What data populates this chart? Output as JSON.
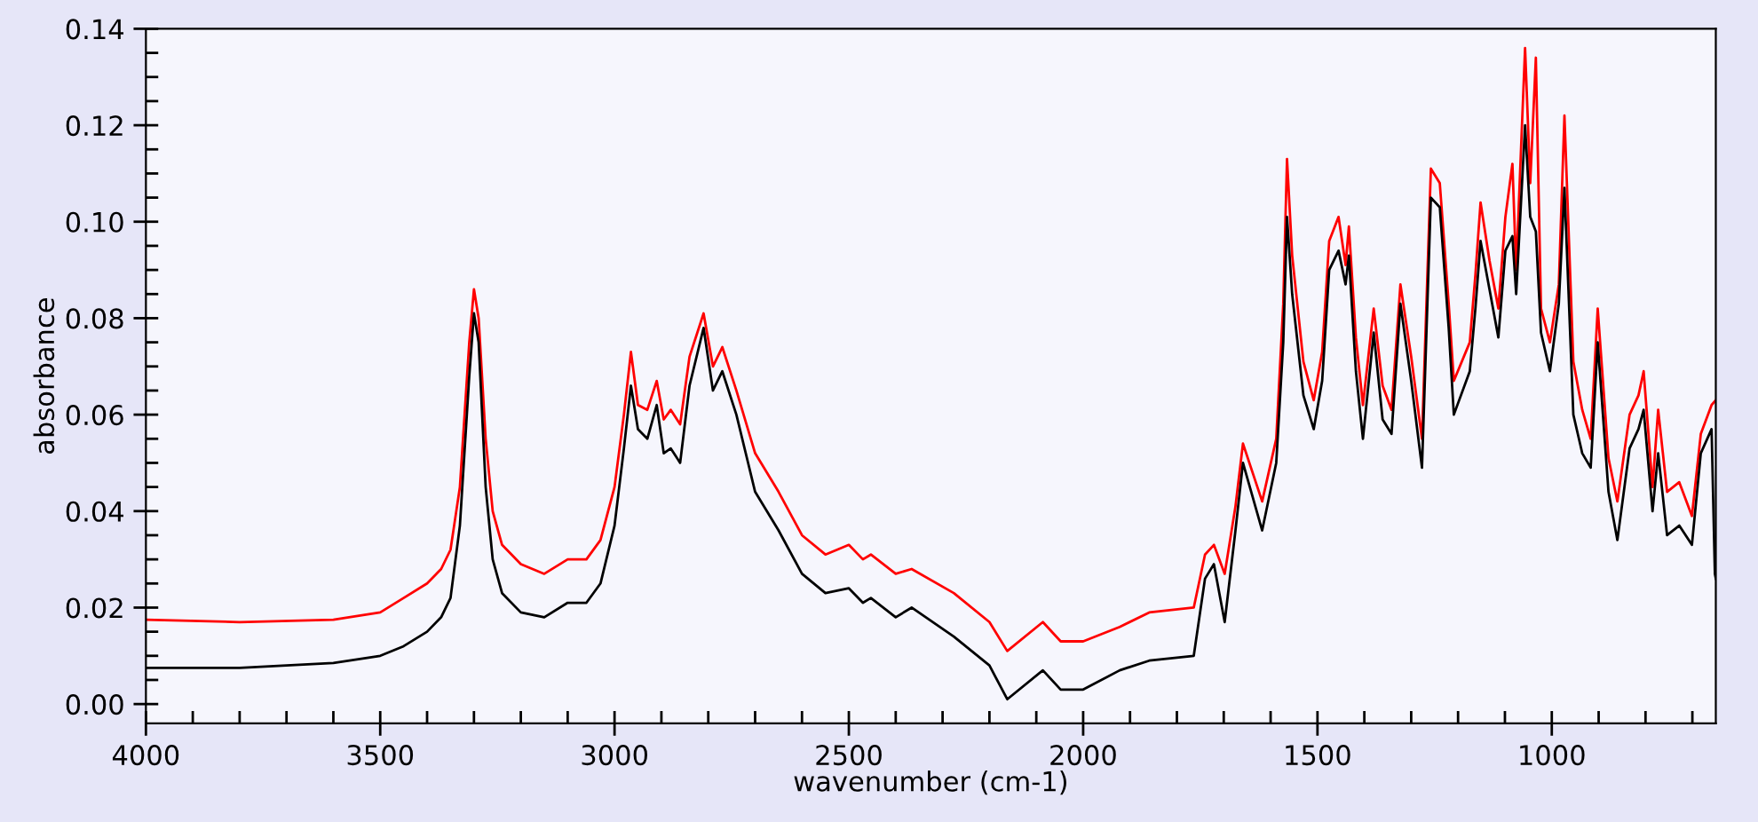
{
  "chart_data": {
    "type": "line",
    "xlabel": "wavenumber (cm-1)",
    "ylabel": "absorbance",
    "xlim": [
      4000,
      650
    ],
    "ylim": [
      -0.004,
      0.14
    ],
    "xticks": [
      4000,
      {
        "value": 3900,
        "label": null
      },
      {
        "value": 3800,
        "label": null
      },
      {
        "value": 3700,
        "label": null
      },
      {
        "value": 3600,
        "label": null
      },
      3500,
      {
        "value": 3400,
        "label": null
      },
      {
        "value": 3300,
        "label": null
      },
      {
        "value": 3200,
        "label": null
      },
      {
        "value": 3100,
        "label": null
      },
      3000,
      {
        "value": 2900,
        "label": null
      },
      {
        "value": 2800,
        "label": null
      },
      {
        "value": 2700,
        "label": null
      },
      {
        "value": 2600,
        "label": null
      },
      2500,
      {
        "value": 2400,
        "label": null
      },
      {
        "value": 2300,
        "label": null
      },
      {
        "value": 2200,
        "label": null
      },
      {
        "value": 2100,
        "label": null
      },
      2000,
      {
        "value": 1900,
        "label": null
      },
      {
        "value": 1800,
        "label": null
      },
      {
        "value": 1700,
        "label": null
      },
      {
        "value": 1600,
        "label": null
      },
      1500,
      {
        "value": 1400,
        "label": null
      },
      {
        "value": 1300,
        "label": null
      },
      {
        "value": 1200,
        "label": null
      },
      {
        "value": 1100,
        "label": null
      },
      1000,
      {
        "value": 900,
        "label": null
      },
      {
        "value": 800,
        "label": null
      },
      {
        "value": 700,
        "label": null
      }
    ],
    "yticks": [
      {
        "value": 0,
        "label": "0.00"
      },
      {
        "value": 0.005,
        "label": null
      },
      {
        "value": 0.01,
        "label": null
      },
      {
        "value": 0.015,
        "label": null
      },
      {
        "value": 0.02,
        "label": "0.02"
      },
      {
        "value": 0.025,
        "label": null
      },
      {
        "value": 0.03,
        "label": null
      },
      {
        "value": 0.035,
        "label": null
      },
      {
        "value": 0.04,
        "label": "0.04"
      },
      {
        "value": 0.045,
        "label": null
      },
      {
        "value": 0.05,
        "label": null
      },
      {
        "value": 0.055,
        "label": null
      },
      {
        "value": 0.06,
        "label": "0.06"
      },
      {
        "value": 0.065,
        "label": null
      },
      {
        "value": 0.07,
        "label": null
      },
      {
        "value": 0.075,
        "label": null
      },
      {
        "value": 0.08,
        "label": "0.08"
      },
      {
        "value": 0.085,
        "label": null
      },
      {
        "value": 0.09,
        "label": null
      },
      {
        "value": 0.095,
        "label": null
      },
      {
        "value": 0.1,
        "label": "0.10"
      },
      {
        "value": 0.105,
        "label": null
      },
      {
        "value": 0.11,
        "label": null
      },
      {
        "value": 0.115,
        "label": null
      },
      {
        "value": 0.12,
        "label": "0.12"
      },
      {
        "value": 0.125,
        "label": null
      },
      {
        "value": 0.13,
        "label": null
      },
      {
        "value": 0.135,
        "label": null
      },
      {
        "value": 0.14,
        "label": "0.14"
      }
    ],
    "line_style": "solid",
    "marker": "none",
    "series": [
      {
        "color": "#ff0000",
        "x": [
          4000,
          3800,
          3600,
          3500,
          3450,
          3400,
          3370,
          3350,
          3330,
          3310,
          3300,
          3290,
          3275,
          3260,
          3240,
          3200,
          3150,
          3100,
          3060,
          3030,
          3000,
          2980,
          2965,
          2950,
          2930,
          2910,
          2895,
          2880,
          2860,
          2840,
          2810,
          2790,
          2770,
          2740,
          2700,
          2650,
          2600,
          2550,
          2500,
          2470,
          2453,
          2400,
          2366,
          2276,
          2200,
          2162,
          2086,
          2048,
          2000,
          1922,
          1859,
          1764,
          1740,
          1721,
          1698,
          1675,
          1659,
          1618,
          1588,
          1573,
          1565,
          1554,
          1530,
          1508,
          1490,
          1475,
          1455,
          1440,
          1433,
          1418,
          1403,
          1380,
          1361,
          1342,
          1323,
          1300,
          1277,
          1258,
          1239,
          1220,
          1209,
          1175,
          1163,
          1152,
          1133,
          1114,
          1099,
          1084,
          1076,
          1057,
          1046,
          1034,
          1023,
          1004,
          985,
          973,
          954,
          935,
          917,
          902,
          879,
          860,
          834,
          815,
          804,
          785,
          773,
          754,
          728,
          701,
          682,
          659,
          650
        ],
        "values": [
          0.0175,
          0.017,
          0.0175,
          0.019,
          0.022,
          0.025,
          0.028,
          0.032,
          0.045,
          0.075,
          0.086,
          0.08,
          0.055,
          0.04,
          0.033,
          0.029,
          0.027,
          0.03,
          0.03,
          0.034,
          0.045,
          0.06,
          0.073,
          0.062,
          0.061,
          0.067,
          0.059,
          0.061,
          0.058,
          0.072,
          0.081,
          0.07,
          0.074,
          0.065,
          0.052,
          0.044,
          0.035,
          0.031,
          0.033,
          0.03,
          0.031,
          0.027,
          0.028,
          0.023,
          0.017,
          0.011,
          0.017,
          0.013,
          0.013,
          0.016,
          0.019,
          0.02,
          0.031,
          0.033,
          0.027,
          0.041,
          0.054,
          0.042,
          0.055,
          0.083,
          0.113,
          0.093,
          0.071,
          0.063,
          0.073,
          0.096,
          0.101,
          0.091,
          0.099,
          0.076,
          0.062,
          0.082,
          0.066,
          0.061,
          0.087,
          0.072,
          0.055,
          0.111,
          0.108,
          0.083,
          0.067,
          0.075,
          0.089,
          0.104,
          0.092,
          0.082,
          0.101,
          0.112,
          0.09,
          0.136,
          0.108,
          0.134,
          0.082,
          0.075,
          0.087,
          0.122,
          0.071,
          0.061,
          0.055,
          0.082,
          0.051,
          0.042,
          0.06,
          0.064,
          0.069,
          0.045,
          0.061,
          0.044,
          0.046,
          0.039,
          0.056,
          0.062,
          0.063
        ]
      },
      {
        "color": "#000000",
        "x": [
          4000,
          3800,
          3600,
          3500,
          3450,
          3400,
          3370,
          3350,
          3330,
          3310,
          3300,
          3290,
          3275,
          3260,
          3240,
          3200,
          3150,
          3100,
          3060,
          3030,
          3000,
          2980,
          2965,
          2950,
          2930,
          2910,
          2895,
          2880,
          2860,
          2840,
          2810,
          2790,
          2770,
          2740,
          2700,
          2650,
          2600,
          2550,
          2500,
          2470,
          2453,
          2400,
          2366,
          2276,
          2200,
          2162,
          2086,
          2048,
          2000,
          1922,
          1859,
          1764,
          1740,
          1721,
          1698,
          1675,
          1659,
          1618,
          1588,
          1573,
          1565,
          1554,
          1530,
          1508,
          1490,
          1475,
          1455,
          1440,
          1433,
          1418,
          1403,
          1380,
          1361,
          1342,
          1323,
          1300,
          1277,
          1258,
          1239,
          1220,
          1209,
          1175,
          1163,
          1152,
          1133,
          1114,
          1099,
          1084,
          1076,
          1057,
          1046,
          1034,
          1023,
          1004,
          985,
          973,
          954,
          935,
          917,
          902,
          879,
          860,
          834,
          815,
          804,
          785,
          773,
          754,
          728,
          701,
          682,
          659,
          652,
          650
        ],
        "values": [
          0.0075,
          0.0075,
          0.0085,
          0.01,
          0.012,
          0.015,
          0.018,
          0.022,
          0.037,
          0.068,
          0.081,
          0.075,
          0.045,
          0.03,
          0.023,
          0.019,
          0.018,
          0.021,
          0.021,
          0.025,
          0.037,
          0.053,
          0.066,
          0.057,
          0.055,
          0.062,
          0.052,
          0.053,
          0.05,
          0.066,
          0.078,
          0.065,
          0.069,
          0.06,
          0.044,
          0.036,
          0.027,
          0.023,
          0.024,
          0.021,
          0.022,
          0.018,
          0.02,
          0.014,
          0.008,
          0.001,
          0.007,
          0.003,
          0.003,
          0.007,
          0.009,
          0.01,
          0.026,
          0.029,
          0.017,
          0.036,
          0.05,
          0.036,
          0.05,
          0.075,
          0.101,
          0.085,
          0.064,
          0.057,
          0.067,
          0.09,
          0.094,
          0.087,
          0.093,
          0.069,
          0.055,
          0.077,
          0.059,
          0.056,
          0.083,
          0.067,
          0.049,
          0.105,
          0.103,
          0.078,
          0.06,
          0.069,
          0.082,
          0.096,
          0.086,
          0.076,
          0.094,
          0.097,
          0.085,
          0.12,
          0.101,
          0.098,
          0.077,
          0.069,
          0.083,
          0.107,
          0.06,
          0.052,
          0.049,
          0.075,
          0.044,
          0.034,
          0.053,
          0.057,
          0.061,
          0.04,
          0.052,
          0.035,
          0.037,
          0.033,
          0.052,
          0.057,
          0.027,
          0.026
        ]
      }
    ]
  }
}
